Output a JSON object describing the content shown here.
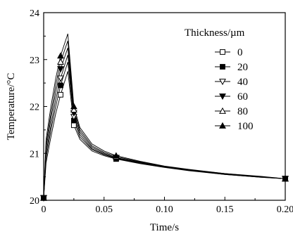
{
  "chart_data": {
    "type": "line",
    "xlabel": "Time/s",
    "ylabel": "Temperature/°C",
    "xlim": [
      0,
      0.2
    ],
    "ylim": [
      20,
      24
    ],
    "xticks": [
      0,
      0.05,
      0.1,
      0.15,
      0.2
    ],
    "xtick_labels": [
      "0",
      "0.05",
      "0.10",
      "0.15",
      "0.20"
    ],
    "yticks": [
      20,
      21,
      22,
      23,
      24
    ],
    "ytick_labels": [
      "20",
      "21",
      "22",
      "23",
      "24"
    ],
    "grid": false,
    "legend": {
      "title": "Thickness/µm",
      "placement": "top-right"
    },
    "series": [
      {
        "name": "0",
        "marker": "open-square",
        "x": [
          0,
          0.002,
          0.006,
          0.01,
          0.014,
          0.02,
          0.025,
          0.03,
          0.04,
          0.05,
          0.06,
          0.08,
          0.1,
          0.12,
          0.15,
          0.18,
          0.2
        ],
        "y": [
          20.05,
          20.8,
          21.35,
          21.85,
          22.25,
          22.75,
          21.6,
          21.3,
          21.05,
          20.95,
          20.88,
          20.78,
          20.7,
          20.63,
          20.55,
          20.49,
          20.46
        ],
        "marker_x": [
          0,
          0.014,
          0.025,
          0.06,
          0.2
        ],
        "marker_y": [
          20.05,
          22.25,
          21.6,
          20.88,
          20.46
        ]
      },
      {
        "name": "20",
        "marker": "filled-square",
        "x": [
          0,
          0.002,
          0.006,
          0.01,
          0.014,
          0.02,
          0.025,
          0.03,
          0.04,
          0.05,
          0.06,
          0.08,
          0.1,
          0.12,
          0.15,
          0.18,
          0.2
        ],
        "y": [
          20.05,
          20.9,
          21.5,
          22.0,
          22.45,
          22.95,
          21.7,
          21.35,
          21.08,
          20.97,
          20.89,
          20.79,
          20.71,
          20.64,
          20.55,
          20.49,
          20.46
        ],
        "marker_x": [
          0,
          0.014,
          0.025,
          0.06,
          0.2
        ],
        "marker_y": [
          20.05,
          22.45,
          21.7,
          20.89,
          20.46
        ]
      },
      {
        "name": "40",
        "marker": "open-triangle-down",
        "x": [
          0,
          0.002,
          0.006,
          0.01,
          0.014,
          0.02,
          0.025,
          0.03,
          0.04,
          0.05,
          0.06,
          0.08,
          0.1,
          0.12,
          0.15,
          0.18,
          0.2
        ],
        "y": [
          20.05,
          21.0,
          21.6,
          22.15,
          22.6,
          23.1,
          21.78,
          21.4,
          21.1,
          20.98,
          20.9,
          20.8,
          20.71,
          20.64,
          20.56,
          20.5,
          20.46
        ],
        "marker_x": [
          0,
          0.014,
          0.025,
          0.06,
          0.2
        ],
        "marker_y": [
          20.05,
          22.6,
          21.78,
          20.9,
          20.46
        ]
      },
      {
        "name": "60",
        "marker": "filled-triangle-down",
        "x": [
          0,
          0.002,
          0.006,
          0.01,
          0.014,
          0.02,
          0.025,
          0.03,
          0.04,
          0.05,
          0.06,
          0.08,
          0.1,
          0.12,
          0.15,
          0.18,
          0.2
        ],
        "y": [
          20.05,
          21.1,
          21.75,
          22.3,
          22.8,
          23.25,
          21.86,
          21.45,
          21.13,
          21.0,
          20.91,
          20.81,
          20.72,
          20.65,
          20.56,
          20.5,
          20.46
        ],
        "marker_x": [
          0,
          0.014,
          0.025,
          0.06,
          0.2
        ],
        "marker_y": [
          20.05,
          22.8,
          21.86,
          20.91,
          20.46
        ]
      },
      {
        "name": "80",
        "marker": "open-triangle-up",
        "x": [
          0,
          0.002,
          0.006,
          0.01,
          0.014,
          0.02,
          0.025,
          0.03,
          0.04,
          0.05,
          0.06,
          0.08,
          0.1,
          0.12,
          0.15,
          0.18,
          0.2
        ],
        "y": [
          20.05,
          21.2,
          21.85,
          22.45,
          22.95,
          23.4,
          21.93,
          21.5,
          21.16,
          21.02,
          20.93,
          20.82,
          20.72,
          20.65,
          20.57,
          20.5,
          20.46
        ],
        "marker_x": [
          0,
          0.014,
          0.025,
          0.06,
          0.2
        ],
        "marker_y": [
          20.05,
          22.95,
          21.93,
          20.93,
          20.46
        ]
      },
      {
        "name": "100",
        "marker": "filled-triangle-up",
        "x": [
          0,
          0.002,
          0.006,
          0.01,
          0.014,
          0.02,
          0.025,
          0.03,
          0.04,
          0.05,
          0.06,
          0.08,
          0.1,
          0.12,
          0.15,
          0.18,
          0.2
        ],
        "y": [
          20.05,
          21.3,
          22.0,
          22.6,
          23.08,
          23.55,
          22.0,
          21.55,
          21.2,
          21.05,
          20.95,
          20.83,
          20.73,
          20.66,
          20.57,
          20.51,
          20.46
        ],
        "marker_x": [
          0,
          0.014,
          0.025,
          0.06,
          0.2
        ],
        "marker_y": [
          20.05,
          23.08,
          22.0,
          20.95,
          20.46
        ]
      }
    ]
  }
}
